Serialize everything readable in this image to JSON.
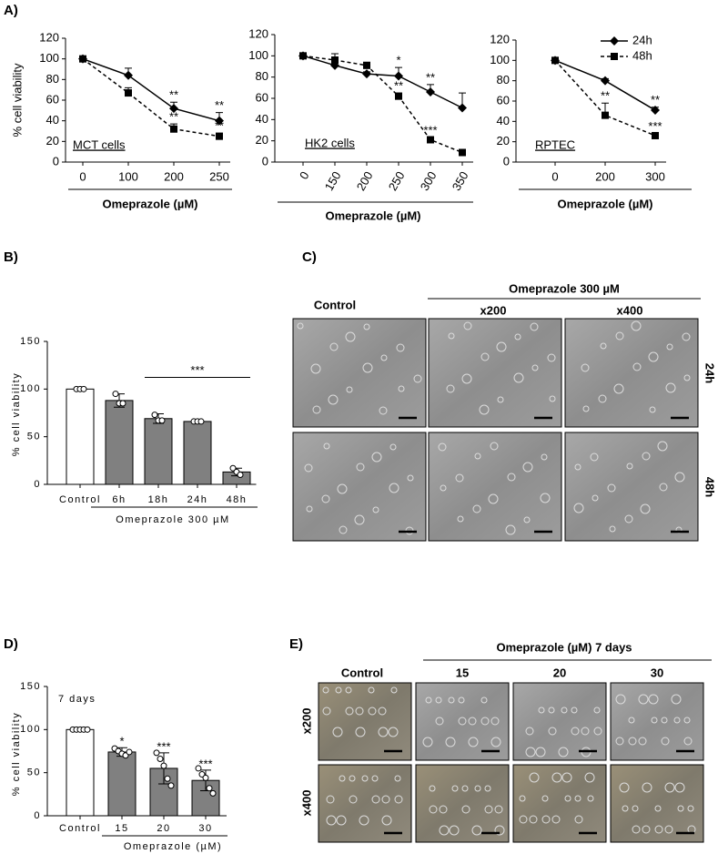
{
  "panels": {
    "A": "A)",
    "B": "B)",
    "D": "D)",
    "C": {
      "label": "C)",
      "control": "Control",
      "title": "Omeprazole 300 µM",
      "mag1": "x200",
      "mag2": "x400",
      "row1": "24h",
      "row2": "48h"
    },
    "E": {
      "label": "E)",
      "title": "Omeprazole (µM) 7 days",
      "control": "Control",
      "c1": "15",
      "c2": "20",
      "c3": "30",
      "row1": "x200",
      "row2": "x400"
    }
  },
  "chart_data": [
    {
      "type": "line",
      "label": "MCT cells",
      "ylabel": "% cell viability",
      "xlabel": "Omeprazole (µM)",
      "categories": [
        "0",
        "100",
        "200",
        "250"
      ],
      "ylim": [
        0,
        120
      ],
      "yticks": [
        0,
        20,
        40,
        60,
        80,
        100,
        120
      ],
      "series": [
        {
          "name": "24h",
          "color": "#000000",
          "line_style": "solid",
          "marker": "diamond",
          "values": [
            100,
            84,
            52,
            40
          ],
          "errors": [
            2,
            7,
            6,
            8
          ]
        },
        {
          "name": "48h",
          "color": "#000000",
          "line_style": "dashed",
          "marker": "square",
          "values": [
            100,
            67,
            32,
            25
          ],
          "errors": [
            2,
            5,
            5,
            3
          ]
        }
      ],
      "annotations": [
        {
          "text": "**",
          "series": "24h",
          "category": "200"
        },
        {
          "text": "**",
          "series": "24h",
          "category": "250"
        },
        {
          "text": "**",
          "series": "48h",
          "category": "200"
        },
        {
          "text": "**",
          "series": "48h",
          "category": "250"
        }
      ]
    },
    {
      "type": "line",
      "label": "HK2 cells",
      "xlabel": "Omeprazole (µM)",
      "categories": [
        "0",
        "150",
        "200",
        "250",
        "300",
        "350"
      ],
      "ylim": [
        0,
        120
      ],
      "yticks": [
        0,
        20,
        40,
        60,
        80,
        100,
        120
      ],
      "series": [
        {
          "name": "24h",
          "color": "#000000",
          "line_style": "solid",
          "marker": "diamond",
          "values": [
            100,
            91,
            83,
            81,
            66,
            51
          ],
          "errors": [
            2,
            3,
            2,
            8,
            7,
            14
          ]
        },
        {
          "name": "48h",
          "color": "#000000",
          "line_style": "dashed",
          "marker": "square",
          "values": [
            100,
            96,
            91,
            62,
            21,
            9
          ],
          "errors": [
            2,
            6,
            3,
            3,
            2,
            2
          ]
        }
      ],
      "annotations": [
        {
          "text": "*",
          "series": "24h",
          "category": "250"
        },
        {
          "text": "**",
          "series": "24h",
          "category": "300"
        },
        {
          "text": "**",
          "series": "48h",
          "category": "250"
        },
        {
          "text": "***",
          "series": "48h",
          "category": "300"
        }
      ]
    },
    {
      "type": "line",
      "label": "RPTEC",
      "xlabel": "Omeprazole (µM)",
      "legend": "upper right",
      "categories": [
        "0",
        "200",
        "300"
      ],
      "ylim": [
        0,
        120
      ],
      "yticks": [
        0,
        20,
        40,
        60,
        80,
        100,
        120
      ],
      "series": [
        {
          "name": "24h",
          "color": "#000000",
          "line_style": "solid",
          "marker": "diamond",
          "values": [
            100,
            80,
            51
          ],
          "errors": [
            2,
            2,
            3
          ]
        },
        {
          "name": "48h",
          "color": "#000000",
          "line_style": "dashed",
          "marker": "square",
          "values": [
            100,
            46,
            26
          ],
          "errors": [
            2,
            12,
            2
          ]
        }
      ],
      "annotations": [
        {
          "text": "**",
          "series": "48h",
          "category": "200"
        },
        {
          "text": "**",
          "series": "24h",
          "category": "300"
        },
        {
          "text": "***",
          "series": "48h",
          "category": "300"
        }
      ]
    },
    {
      "type": "bar",
      "ylabel": "% cell viability",
      "xlabel": "Omeprazole 300 µM",
      "categories": [
        "Control",
        "6h",
        "18h",
        "24h",
        "48h"
      ],
      "values": [
        100,
        88,
        69,
        66,
        13
      ],
      "errors": [
        2,
        7,
        5,
        2,
        4
      ],
      "bar_colors": [
        "#ffffff",
        "#808080",
        "#808080",
        "#808080",
        "#808080"
      ],
      "point_fill": "#ffffff",
      "points": [
        [
          100,
          100,
          100
        ],
        [
          95,
          85,
          85
        ],
        [
          73,
          67,
          67
        ],
        [
          66,
          66,
          66
        ],
        [
          17,
          13,
          10
        ]
      ],
      "ylim": [
        0,
        150
      ],
      "yticks": [
        0,
        50,
        100,
        150
      ],
      "brackets": [
        {
          "text": "***",
          "from": "18h",
          "to": "48h"
        }
      ]
    },
    {
      "type": "bar",
      "ylabel": "% cell viability",
      "xlabel": "Omeprazole (µM)",
      "label": "7 days",
      "categories": [
        "Control",
        "15",
        "20",
        "30"
      ],
      "values": [
        100,
        74,
        55,
        41
      ],
      "errors": [
        1,
        5,
        18,
        12
      ],
      "bar_colors": [
        "#ffffff",
        "#808080",
        "#808080",
        "#808080"
      ],
      "point_fill": "#ffffff",
      "points": [
        [
          100,
          100,
          100,
          100,
          100
        ],
        [
          78,
          75,
          72,
          70,
          74
        ],
        [
          73,
          66,
          58,
          43,
          35
        ],
        [
          55,
          48,
          44,
          32,
          26
        ]
      ],
      "ylim": [
        0,
        150
      ],
      "yticks": [
        0,
        50,
        100,
        150
      ],
      "annotations": [
        {
          "text": "*",
          "category": "15"
        },
        {
          "text": "***",
          "category": "20"
        },
        {
          "text": "***",
          "category": "30"
        }
      ]
    }
  ]
}
